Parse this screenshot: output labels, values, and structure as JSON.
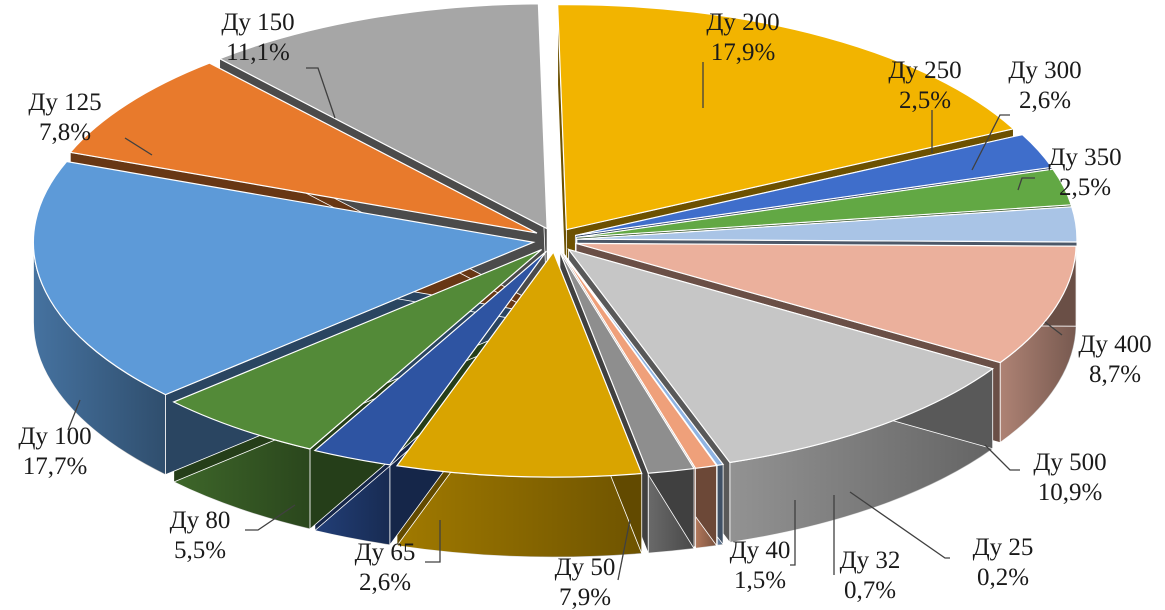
{
  "chart_data": {
    "type": "pie",
    "style": "3d-exploded",
    "unit": "%",
    "legend": "none",
    "slices": [
      {
        "label": "Ду 200",
        "value": 17.9,
        "display": "17,9%",
        "color": "#f2b400"
      },
      {
        "label": "Ду 250",
        "value": 2.5,
        "display": "2,5%",
        "color": "#3f6ecb"
      },
      {
        "label": "Ду 300",
        "value": 2.6,
        "display": "2,6%",
        "color": "#62a844"
      },
      {
        "label": "Ду 350",
        "value": 2.5,
        "display": "2,5%",
        "color": "#a9c4e6"
      },
      {
        "label": "Ду 400",
        "value": 8.7,
        "display": "8,7%",
        "color": "#ebb09c"
      },
      {
        "label": "Ду 500",
        "value": 10.9,
        "display": "10,9%",
        "color": "#c6c6c6"
      },
      {
        "label": "Ду 25",
        "value": 0.2,
        "display": "0,2%",
        "color": "#8fb4e3"
      },
      {
        "label": "Ду 32",
        "value": 0.7,
        "display": "0,7%",
        "color": "#efa07a"
      },
      {
        "label": "Ду 40",
        "value": 1.5,
        "display": "1,5%",
        "color": "#8e8e8e"
      },
      {
        "label": "Ду 50",
        "value": 7.9,
        "display": "7,9%",
        "color": "#d9a400"
      },
      {
        "label": "Ду 65",
        "value": 2.6,
        "display": "2,6%",
        "color": "#2e54a2"
      },
      {
        "label": "Ду 80",
        "value": 5.5,
        "display": "5,5%",
        "color": "#538a38"
      },
      {
        "label": "Ду 100",
        "value": 17.7,
        "display": "17,7%",
        "color": "#5d9ad8"
      },
      {
        "label": "Ду 125",
        "value": 7.8,
        "display": "7,8%",
        "color": "#e87a2c"
      },
      {
        "label": "Ду 150",
        "value": 11.1,
        "display": "11,1%",
        "color": "#a6a6a6"
      }
    ]
  }
}
